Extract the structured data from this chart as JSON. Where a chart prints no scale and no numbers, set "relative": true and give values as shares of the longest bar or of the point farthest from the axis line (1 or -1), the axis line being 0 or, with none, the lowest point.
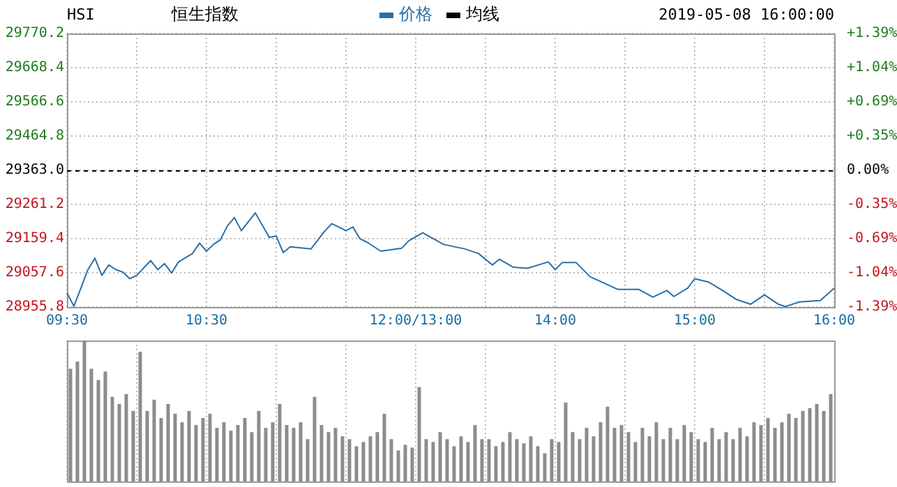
{
  "chart_data": [
    {
      "type": "line",
      "title": "恒生指数",
      "subtitle": "HSI",
      "annotations": [
        "2019-05-08 16:00:00"
      ],
      "legend": "top",
      "grid": true,
      "marker": "none",
      "line_style": "solid",
      "categories": [
        "09:30",
        null,
        null,
        null,
        null,
        null,
        null,
        null,
        null,
        null,
        null,
        null,
        null,
        null,
        null,
        null,
        null,
        null,
        null,
        null,
        "10:30",
        null,
        null,
        null,
        null,
        null,
        null,
        null,
        null,
        null,
        null,
        null,
        null,
        null,
        null,
        null,
        null,
        null,
        null,
        null,
        null,
        null,
        null,
        null,
        null,
        null,
        null,
        null,
        null,
        null,
        "12:00/13:00",
        null,
        null,
        null,
        null,
        null,
        null,
        null,
        null,
        null,
        null,
        null,
        null,
        null,
        null,
        null,
        null,
        null,
        null,
        null,
        "14:00",
        null,
        null,
        null,
        null,
        null,
        null,
        null,
        null,
        null,
        null,
        null,
        null,
        null,
        null,
        null,
        null,
        null,
        null,
        null,
        "15:00",
        null,
        null,
        null,
        null,
        null,
        null,
        null,
        null,
        null,
        null,
        null,
        null,
        null,
        null,
        null,
        null,
        null,
        null,
        null,
        "16:00"
      ],
      "ylim": [
        28955.8,
        29770.2
      ],
      "yticks": [
        {
          "value": 28955.8,
          "label": "28955.8"
        },
        {
          "value": 29057.6,
          "label": "29057.6"
        },
        {
          "value": 29159.4,
          "label": "29159.4"
        },
        {
          "value": 29261.2,
          "label": "29261.2"
        },
        {
          "value": 29363.0,
          "label": "29363.0"
        },
        {
          "value": 29464.8,
          "label": "29464.8"
        },
        {
          "value": 29566.6,
          "label": "29566.6"
        },
        {
          "value": 29668.4,
          "label": "29668.4"
        },
        {
          "value": 29770.2,
          "label": "29770.2"
        }
      ],
      "y2lim": [
        -1.387,
        1.387
      ],
      "y2ticks": [
        {
          "value": -1.387,
          "label": "-1.39%"
        },
        {
          "value": -1.04,
          "label": "-1.04%"
        },
        {
          "value": -0.693,
          "label": "-0.69%"
        },
        {
          "value": -0.347,
          "label": "-0.35%"
        },
        {
          "value": 0,
          "label": "0.00%"
        },
        {
          "value": 0.347,
          "label": "+0.35%"
        },
        {
          "value": 0.693,
          "label": "+0.69%"
        },
        {
          "value": 1.04,
          "label": "+1.04%"
        },
        {
          "value": 1.387,
          "label": "+1.39%"
        }
      ],
      "ref_lines": [
        {
          "axis": "y",
          "value": 29363.0,
          "color": "#000000",
          "line_style": "dashed"
        }
      ],
      "series": [
        {
          "name": "价格",
          "color": "#2a6fa8",
          "values": [
            28998,
            28958,
            29012,
            29067,
            29101,
            29050,
            29081,
            29067,
            29060,
            29040,
            29050,
            null,
            29094,
            29067,
            29085,
            29057,
            29090,
            null,
            29115,
            29146,
            29122,
            29142,
            29156,
            29197,
            29222,
            29183,
            null,
            29236,
            null,
            29163,
            29167,
            29118,
            29135,
            null,
            null,
            29129,
            null,
            29183,
            29204,
            null,
            29183,
            29194,
            29159,
            29149,
            null,
            29122,
            null,
            null,
            29131,
            29153,
            null,
            29177,
            null,
            null,
            29142,
            null,
            null,
            29129,
            null,
            29115,
            null,
            29081,
            29098,
            null,
            29074,
            null,
            29071,
            null,
            null,
            29090,
            29067,
            29088,
            null,
            29088,
            null,
            29046,
            null,
            null,
            null,
            29008,
            null,
            null,
            29008,
            null,
            28985,
            null,
            29005,
            28987,
            null,
            29012,
            29040,
            null,
            29030,
            null,
            29005,
            null,
            28978,
            null,
            28964,
            null,
            28992,
            null,
            28964,
            28957,
            null,
            28971,
            null,
            null,
            28975,
            null,
            29012
          ]
        },
        {
          "name": "均线",
          "color": "#000000",
          "values": [
            null,
            null,
            null,
            null,
            null,
            null,
            null,
            null,
            null,
            null,
            null,
            null,
            null,
            null,
            null,
            null,
            null,
            null,
            null,
            null,
            null,
            null,
            null,
            null,
            null,
            null,
            null,
            null,
            null,
            null,
            null,
            null,
            null,
            null,
            null,
            null,
            null,
            null,
            null,
            null,
            null,
            null,
            null,
            null,
            null,
            null,
            null,
            null,
            null,
            null,
            null,
            null,
            null,
            null,
            null,
            null,
            null,
            null,
            null,
            null,
            null,
            null,
            null,
            null,
            null,
            null,
            null,
            null,
            null,
            null,
            null,
            null,
            null,
            null,
            null,
            null,
            null,
            null,
            null,
            null,
            null,
            null,
            null,
            null,
            null,
            null,
            null,
            null,
            null,
            null,
            null,
            null,
            null,
            null,
            null,
            null,
            null,
            null,
            null,
            null,
            null,
            null,
            null,
            null,
            null,
            null,
            null,
            null,
            null,
            null,
            null
          ]
        }
      ]
    },
    {
      "type": "bar",
      "relative": true,
      "grid": "x",
      "color": "#8c8c8c",
      "categories": [
        null,
        null,
        null,
        null,
        null,
        null,
        null,
        null,
        null,
        null,
        null,
        null,
        null,
        null,
        null,
        null,
        null,
        null,
        null,
        null,
        null,
        null,
        null,
        null,
        null,
        null,
        null,
        null,
        null,
        null,
        null,
        null,
        null,
        null,
        null,
        null,
        null,
        null,
        null,
        null,
        null,
        null,
        null,
        null,
        null,
        null,
        null,
        null,
        null,
        null,
        null,
        null,
        null,
        null,
        null,
        null,
        null,
        null,
        null,
        null,
        null,
        null,
        null,
        null,
        null,
        null,
        null,
        null,
        null,
        null,
        null,
        null,
        null,
        null,
        null,
        null,
        null,
        null,
        null,
        null,
        null,
        null,
        null,
        null,
        null,
        null,
        null,
        null,
        null,
        null,
        null,
        null,
        null,
        null,
        null,
        null,
        null,
        null,
        null,
        null,
        null,
        null,
        null,
        null,
        null,
        null,
        null,
        null,
        null,
        null
      ],
      "values": [
        0.8,
        0.85,
        1,
        0.8,
        0.72,
        0.78,
        0.6,
        0.55,
        0.62,
        0.5,
        0.92,
        0.5,
        0.58,
        0.45,
        0.55,
        0.48,
        0.42,
        0.5,
        0.4,
        0.45,
        0.48,
        0.38,
        0.42,
        0.36,
        0.4,
        0.45,
        0.35,
        0.5,
        0.38,
        0.42,
        0.55,
        0.4,
        0.38,
        0.42,
        0.3,
        0.6,
        0.4,
        0.35,
        0.38,
        0.32,
        0.3,
        0.25,
        0.28,
        0.32,
        0.35,
        0.48,
        0.3,
        0.22,
        0.26,
        0.24,
        0.67,
        0.3,
        0.28,
        0.35,
        0.3,
        0.25,
        0.32,
        0.28,
        0.4,
        0.3,
        0.3,
        0.25,
        0.28,
        0.35,
        0.3,
        0.27,
        0.32,
        0.25,
        0.2,
        0.3,
        0.28,
        0.56,
        0.35,
        0.3,
        0.38,
        0.32,
        0.42,
        0.53,
        0.38,
        0.4,
        0.35,
        0.28,
        0.38,
        0.32,
        0.42,
        0.3,
        0.38,
        0.3,
        0.4,
        0.35,
        0.3,
        0.28,
        0.38,
        0.3,
        0.35,
        0.3,
        0.38,
        0.32,
        0.42,
        0.4,
        0.45,
        0.38,
        0.42,
        0.48,
        0.45,
        0.5,
        0.52,
        0.55,
        0.5,
        0.62
      ]
    }
  ]
}
